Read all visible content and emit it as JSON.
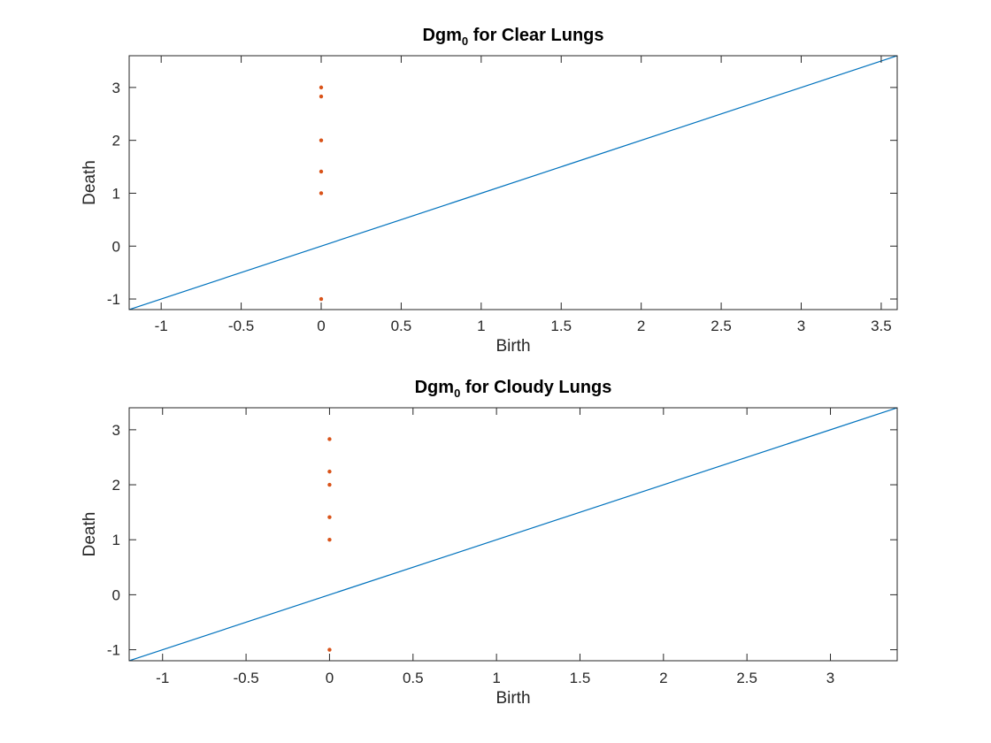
{
  "chart_data": [
    {
      "type": "scatter",
      "title_main": "Dgm",
      "title_sub": "0",
      "title_rest": " for Clear Lungs",
      "xlabel": "Birth",
      "ylabel": "Death",
      "xlim": [
        -1.2,
        3.6
      ],
      "ylim": [
        -1.2,
        3.6
      ],
      "xticks": [
        -1,
        -0.5,
        0,
        0.5,
        1,
        1.5,
        2,
        2.5,
        3,
        3.5
      ],
      "yticks": [
        -1,
        0,
        1,
        2,
        3
      ],
      "diagonal": true,
      "points": [
        {
          "x": 0,
          "y": 3
        },
        {
          "x": 0,
          "y": 2.83
        },
        {
          "x": 0,
          "y": 2
        },
        {
          "x": 0,
          "y": 1.41
        },
        {
          "x": 0,
          "y": 1
        },
        {
          "x": 0,
          "y": -1
        }
      ]
    },
    {
      "type": "scatter",
      "title_main": "Dgm",
      "title_sub": "0",
      "title_rest": " for Cloudy Lungs",
      "xlabel": "Birth",
      "ylabel": "Death",
      "xlim": [
        -1.2,
        3.4
      ],
      "ylim": [
        -1.2,
        3.4
      ],
      "xticks": [
        -1,
        -0.5,
        0,
        0.5,
        1,
        1.5,
        2,
        2.5,
        3
      ],
      "yticks": [
        -1,
        0,
        1,
        2,
        3
      ],
      "diagonal": true,
      "points": [
        {
          "x": 0,
          "y": 2.83
        },
        {
          "x": 0,
          "y": 2.24
        },
        {
          "x": 0,
          "y": 2
        },
        {
          "x": 0,
          "y": 1.41
        },
        {
          "x": 0,
          "y": 1
        },
        {
          "x": 0,
          "y": -1
        }
      ]
    }
  ],
  "colors": {
    "diagonal": "#0072BD",
    "points": "#D95319"
  }
}
